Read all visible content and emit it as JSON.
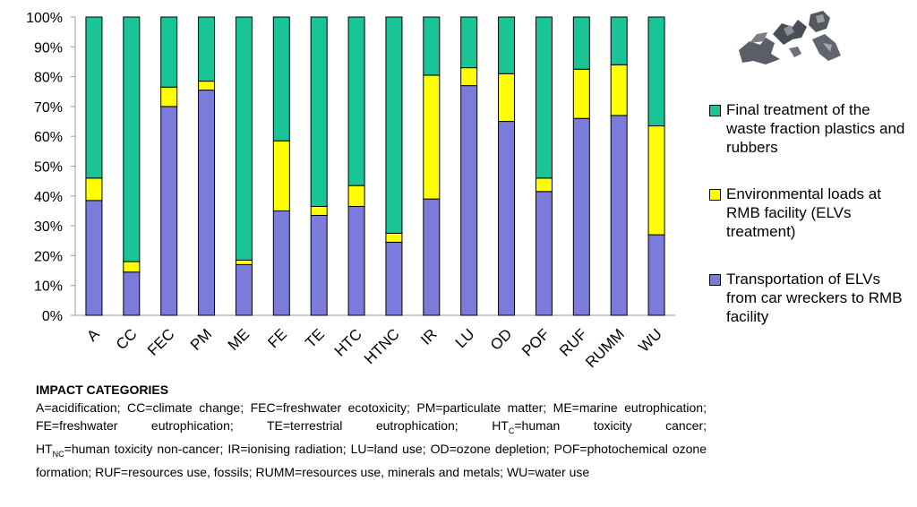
{
  "chart_data": {
    "type": "bar",
    "stacked": true,
    "normalized": true,
    "categories": [
      "A",
      "CC",
      "FEC",
      "PM",
      "ME",
      "FE",
      "TE",
      "HTC",
      "HTNC",
      "IR",
      "LU",
      "OD",
      "POF",
      "RUF",
      "RUMM",
      "WU"
    ],
    "series": [
      {
        "name": "Transportation of ELVs from car wreckers to RMB facility",
        "color": "#7b7bdb",
        "values": [
          38.5,
          14.5,
          70.0,
          75.5,
          17.0,
          35.0,
          33.5,
          36.5,
          24.5,
          39.0,
          77.0,
          65.0,
          41.5,
          66.0,
          67.0,
          27.0
        ]
      },
      {
        "name": "Environmental loads at RMB facility (ELVs treatment)",
        "color": "#ffff00",
        "values": [
          7.5,
          3.5,
          6.5,
          3.0,
          1.5,
          23.5,
          3.0,
          7.0,
          3.0,
          41.5,
          6.0,
          16.0,
          4.5,
          16.5,
          17.0,
          36.5
        ]
      },
      {
        "name": "Final treatment of the waste fraction plastics and rubbers",
        "color": "#19c496",
        "values": [
          54.0,
          82.0,
          23.5,
          21.5,
          81.5,
          41.5,
          63.5,
          56.5,
          72.5,
          19.5,
          17.0,
          19.0,
          54.0,
          17.5,
          16.0,
          36.5
        ]
      }
    ],
    "yticks": [
      "0%",
      "10%",
      "20%",
      "30%",
      "40%",
      "50%",
      "60%",
      "70%",
      "80%",
      "90%",
      "100%"
    ],
    "ylim": [
      0,
      100
    ],
    "grid": false,
    "legend_position": "right",
    "legend_order": [
      2,
      1,
      0
    ]
  },
  "legend": {
    "final": "Final treatment of the waste fraction plastics and rubbers",
    "env": "Environmental loads at RMB facility (ELVs treatment)",
    "transport": "Transportation of ELVs from car wreckers to RMB facility"
  },
  "colors": {
    "transport": "#7b7bdb",
    "env": "#ffff00",
    "final": "#19c496",
    "outline": "#000000"
  },
  "notes": {
    "title": "IMPACT CATEGORIES",
    "p1": "A=acidification; CC=climate change; FEC=freshwater ecotoxicity; PM=particulate matter; ME=marine eutrophication; FE=freshwater eutrophication; TE=terrestrial eutrophication;",
    "htc_base": "HT",
    "htc_sub": "C",
    "htc_rest": "=human toxicity cancer;",
    "htnc_base": "HT",
    "htnc_sub": "NC",
    "htnc_rest": "=human toxicity non-cancer;",
    "p2": "IR=ionising radiation; LU=land use; OD=ozone depletion; POF=photochemical ozone formation; RUF=resources use, fossils; RUMM=resources use, minerals and metals; WU=water use"
  },
  "photo": {
    "icon": "rubber-scraps-photo"
  }
}
